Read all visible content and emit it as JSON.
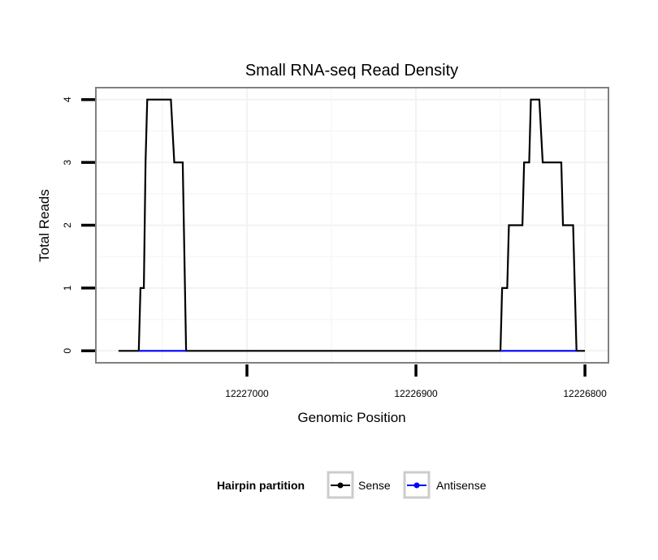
{
  "chart_data": {
    "type": "line",
    "title": "Small RNA-seq Read Density",
    "xlabel": "Genomic Position",
    "ylabel": "Total Reads",
    "xlim": [
      12227089.4,
      12226786.1
    ],
    "x_reversed": true,
    "ylim": [
      -0.19,
      4.19
    ],
    "xticks": [
      12227000,
      12226900,
      12226800
    ],
    "xtick_labels": [
      "12227000",
      "12226900",
      "12226800"
    ],
    "yticks": [
      0,
      1,
      2,
      3,
      4
    ],
    "ytick_labels": [
      "0",
      "1",
      "2",
      "3",
      "4"
    ],
    "grid": true,
    "legend": {
      "title": "Hairpin partition",
      "placement": "bottom",
      "entries": [
        "Sense",
        "Antisense"
      ]
    },
    "series": [
      {
        "name": "Sense",
        "color": "#000000",
        "points": [
          [
            12227076,
            0
          ],
          [
            12227064,
            0
          ],
          [
            12227063,
            1
          ],
          [
            12227061,
            1
          ],
          [
            12227060,
            3
          ],
          [
            12227059,
            4
          ],
          [
            12227045,
            4
          ],
          [
            12227043,
            3
          ],
          [
            12227038,
            3
          ],
          [
            12227036,
            0
          ],
          [
            12226850,
            0
          ],
          [
            12226849,
            1
          ],
          [
            12226846,
            1
          ],
          [
            12226845,
            2
          ],
          [
            12226837,
            2
          ],
          [
            12226836,
            3
          ],
          [
            12226833,
            3
          ],
          [
            12226832,
            4
          ],
          [
            12226827,
            4
          ],
          [
            12226825,
            3
          ],
          [
            12226814,
            3
          ],
          [
            12226813,
            2
          ],
          [
            12226807,
            2
          ],
          [
            12226805,
            0
          ],
          [
            12226800,
            0
          ]
        ]
      },
      {
        "name": "Antisense",
        "color": "#0000ff",
        "segments": [
          [
            [
              12227064,
              0
            ],
            [
              12227036,
              0
            ]
          ],
          [
            [
              12226850,
              0
            ],
            [
              12226805,
              0
            ]
          ]
        ]
      }
    ]
  }
}
